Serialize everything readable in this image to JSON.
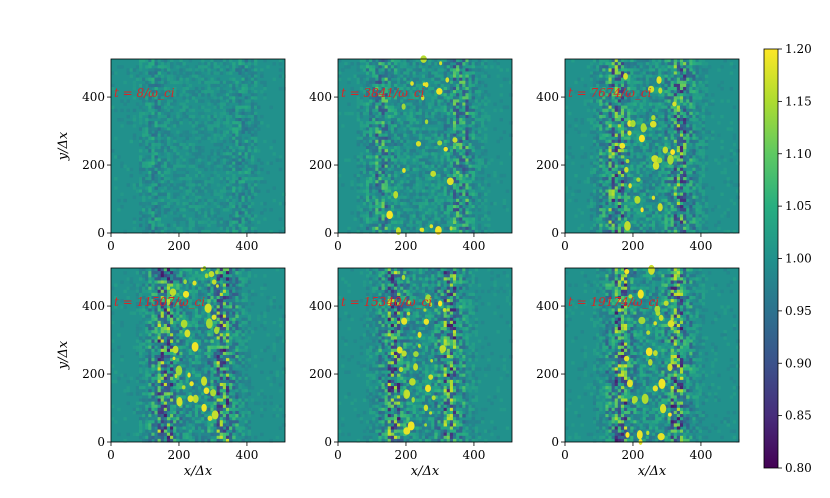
{
  "chart_data": {
    "type": "heatmap",
    "layout": "2x3 grid of panels sharing one colorbar",
    "x_range": [
      0,
      512
    ],
    "y_range": [
      0,
      512
    ],
    "xlabel": "x/Δx",
    "ylabel": "y/Δx",
    "xticks": [
      0,
      200,
      400
    ],
    "yticks": [
      0,
      200,
      400
    ],
    "x_axis_labels_on": "bottom row only",
    "y_axis_labels_on": "left column only",
    "annotation_color": "#d62728",
    "colorbar": {
      "colormap": "viridis",
      "range": [
        0.8,
        1.2
      ],
      "ticks": [
        "0.80",
        "0.85",
        "0.90",
        "0.95",
        "1.00",
        "1.05",
        "1.10",
        "1.15",
        "1.20"
      ],
      "stops": [
        "#440154",
        "#472d7b",
        "#3b528b",
        "#2c728e",
        "#21918c",
        "#28ae80",
        "#5ec962",
        "#addc30",
        "#fde725"
      ]
    },
    "panels": [
      {
        "time": "t = 8/ω_ci",
        "stripe_left": 130,
        "stripe_right": 380,
        "blobs": 0,
        "noise": 0.2
      },
      {
        "time": "t = 3841/ω_ci",
        "stripe_left": 130,
        "stripe_right": 360,
        "blobs": 25,
        "noise": 0.6
      },
      {
        "time": "t = 7674/ω_ci",
        "stripe_left": 150,
        "stripe_right": 340,
        "blobs": 30,
        "noise": 0.85
      },
      {
        "time": "t = 11507/ω_ci",
        "stripe_left": 160,
        "stripe_right": 330,
        "blobs": 34,
        "noise": 0.95
      },
      {
        "time": "t = 15340/ω_ci",
        "stripe_left": 165,
        "stripe_right": 330,
        "blobs": 32,
        "noise": 0.95
      },
      {
        "time": "t = 19174/ω_ci",
        "stripe_left": 165,
        "stripe_right": 330,
        "blobs": 30,
        "noise": 0.95
      }
    ]
  }
}
